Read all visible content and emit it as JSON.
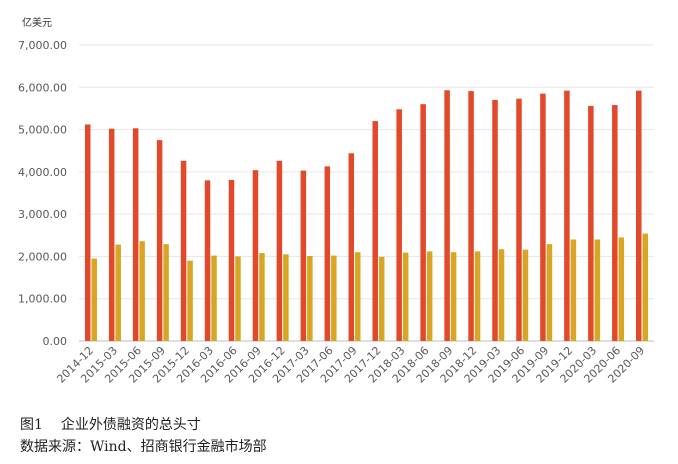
{
  "chart_data": {
    "type": "bar",
    "unit_label": "亿美元",
    "categories": [
      "2014-12",
      "2015-03",
      "2015-06",
      "2015-09",
      "2015-12",
      "2016-03",
      "2016-06",
      "2016-09",
      "2016-12",
      "2017-03",
      "2017-06",
      "2017-09",
      "2017-12",
      "2018-03",
      "2018-06",
      "2018-09",
      "2018-12",
      "2019-03",
      "2019-06",
      "2019-09",
      "2019-12",
      "2020-03",
      "2020-06",
      "2020-09"
    ],
    "series": [
      {
        "values": [
          5120,
          5020,
          5030,
          4750,
          4260,
          3800,
          3810,
          4040,
          4260,
          4030,
          4130,
          4440,
          5200,
          5480,
          5600,
          5930,
          5910,
          5700,
          5730,
          5850,
          5920,
          5560,
          5580,
          5920
        ]
      },
      {
        "values": [
          1950,
          2280,
          2360,
          2290,
          1900,
          2020,
          2000,
          2080,
          2050,
          2010,
          2020,
          2100,
          1990,
          2090,
          2120,
          2100,
          2120,
          2170,
          2160,
          2290,
          2400,
          2400,
          2450,
          2540
        ]
      }
    ],
    "colors": [
      "#e2492a",
      "#d9a623"
    ],
    "ylim": [
      0,
      7000
    ],
    "yticks": [
      "0.00",
      "1,000.00",
      "2,000.00",
      "3,000.00",
      "4,000.00",
      "5,000.00",
      "6,000.00",
      "7,000.00"
    ],
    "grid": true
  },
  "caption": {
    "figure_number": "图1",
    "title": "企业外债融资的总头寸",
    "source": "数据来源：Wind、招商银行金融市场部"
  }
}
